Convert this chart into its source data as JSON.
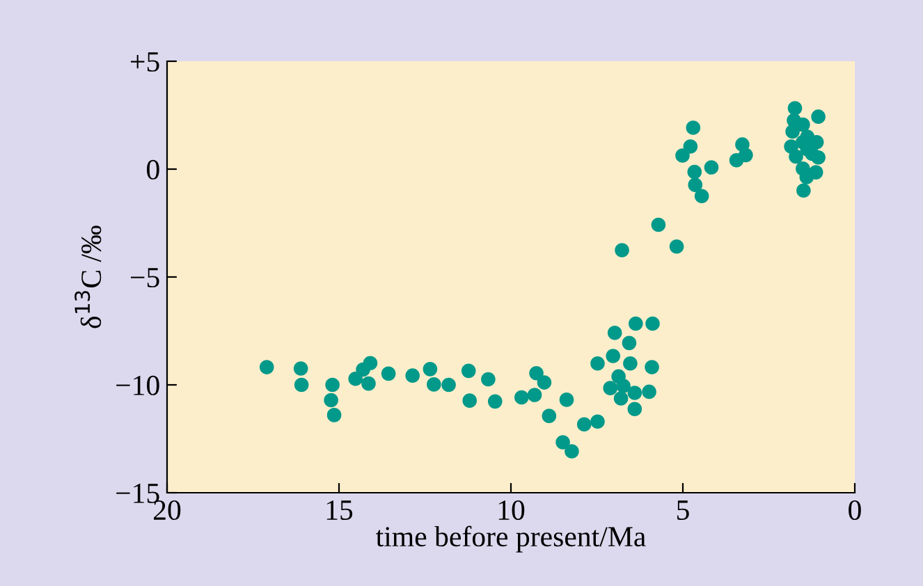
{
  "chart_data": {
    "type": "scatter",
    "xlabel": "time before present/Ma",
    "ylabel": "δ$^{13}$C /‰",
    "x": [
      17.1,
      16.11,
      16.09,
      15.19,
      15.23,
      15.14,
      14.52,
      14.3,
      14.09,
      14.14,
      13.56,
      12.86,
      12.35,
      12.24,
      11.81,
      11.23,
      11.2,
      10.66,
      10.46,
      9.69,
      9.31,
      9.26,
      9.03,
      8.89,
      8.49,
      8.38,
      8.23,
      7.87,
      7.48,
      7.48,
      7.11,
      7.03,
      6.98,
      6.87,
      6.8,
      6.73,
      6.56,
      6.53,
      6.4,
      6.4,
      6.37,
      5.98,
      5.9,
      5.88,
      6.77,
      5.71,
      5.18,
      4.7,
      4.78,
      5.01,
      4.66,
      4.64,
      4.45,
      4.17,
      3.27,
      3.17,
      3.44,
      1.74,
      1.77,
      1.51,
      1.06,
      1.81,
      1.85,
      1.38,
      1.51,
      1.11,
      1.71,
      1.38,
      1.24,
      1.06,
      1.51,
      1.13,
      1.4,
      1.49
    ],
    "values": [
      -9.18,
      -9.24,
      -10.0,
      -10.0,
      -10.71,
      -11.4,
      -9.72,
      -9.29,
      -8.99,
      -9.94,
      -9.48,
      -9.57,
      -9.27,
      -9.98,
      -10.0,
      -9.35,
      -10.73,
      -9.74,
      -10.77,
      -10.58,
      -10.47,
      -9.46,
      -9.89,
      -11.44,
      -12.66,
      -10.69,
      -13.08,
      -11.83,
      -11.7,
      -9.01,
      -10.15,
      -8.66,
      -7.59,
      -9.61,
      -10.63,
      -10.05,
      -8.06,
      -9.01,
      -10.37,
      -11.12,
      -7.16,
      -10.32,
      -9.18,
      -7.16,
      -3.76,
      -2.58,
      -3.59,
      1.92,
      1.05,
      0.63,
      -0.13,
      -0.73,
      -1.25,
      0.08,
      1.14,
      0.65,
      0.41,
      2.82,
      2.26,
      2.06,
      2.43,
      1.74,
      1.05,
      1.5,
      1.25,
      1.25,
      0.58,
      0.92,
      0.71,
      0.54,
      0.02,
      -0.15,
      -0.37,
      -0.99
    ],
    "color": "#00998a",
    "marker": "circle",
    "grid": false,
    "legend": false,
    "xlim": [
      20,
      0
    ],
    "xticks": [
      20,
      15,
      10,
      5,
      0
    ],
    "ylim": [
      -15,
      5
    ],
    "yticks": [
      {
        "value": 5,
        "label": "+5"
      },
      0,
      {
        "value": -5,
        "label": "−5"
      },
      {
        "value": -10,
        "label": "−10"
      },
      {
        "value": -15,
        "label": "−15"
      }
    ]
  }
}
